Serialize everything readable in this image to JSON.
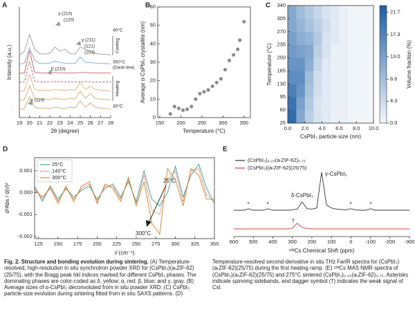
{
  "chart_data": [
    {
      "panel": "A",
      "type": "waterfall",
      "xlabel": "2θ (degree)",
      "ylabel": "Intensity (a.u.)",
      "xlim": [
        19,
        28
      ],
      "xticks": [
        19,
        20,
        21,
        22,
        23,
        24,
        25,
        26,
        27,
        28
      ],
      "x": [
        19,
        19.5,
        20,
        20.5,
        21,
        21.5,
        22,
        22.5,
        23,
        23.5,
        24,
        24.5,
        25,
        25.5,
        26,
        26.5,
        27,
        27.5,
        28
      ],
      "series": [
        {
          "color": "#d4a373",
          "values": [
            1,
            1.2,
            4,
            1.5,
            1.2,
            1.3,
            1.2,
            1.5,
            1.3,
            1.2,
            1.5,
            1.3,
            3,
            1.5,
            2.5,
            1.4,
            1.3,
            1.2,
            1.1
          ]
        },
        {
          "color": "#d9a86c",
          "values": [
            1,
            1.2,
            4.5,
            1.5,
            1.2,
            1.3,
            1.2,
            1.5,
            1.3,
            1.2,
            1.5,
            1.3,
            3.2,
            1.5,
            2.6,
            1.4,
            1.3,
            1.2,
            1.1
          ]
        },
        {
          "color": "#e0b07a",
          "values": [
            1,
            1.2,
            5,
            1.5,
            1.2,
            1.3,
            1.2,
            1.4,
            1.3,
            1.2,
            1.4,
            1.3,
            3.1,
            1.5,
            2.2,
            1.4,
            1.3,
            1.2,
            1.1
          ]
        },
        {
          "color": "#c44e52",
          "linestyle": "dashed",
          "values": [
            1,
            1.1,
            6,
            1.3,
            1.1,
            1.1,
            1.1,
            1.2,
            1.1,
            1.1,
            1.1,
            1.1,
            1.1,
            1.2,
            1.1,
            1.1,
            1.1,
            1.1,
            1.1
          ]
        },
        {
          "color": "#d0605f",
          "values": [
            1,
            1.1,
            6.5,
            1.3,
            1.1,
            1.1,
            1.1,
            1.2,
            1.1,
            1.1,
            1.1,
            1.1,
            1.2,
            1.2,
            1.1,
            1.1,
            1.1,
            1.1,
            1.1
          ]
        },
        {
          "color": "#7fa7cf",
          "values": [
            1,
            1.3,
            5,
            2,
            1.2,
            1.2,
            1.3,
            1.8,
            1.4,
            1.3,
            1.2,
            1.2,
            2.8,
            1.5,
            1.4,
            1.3,
            1.2,
            1.2,
            1.1
          ]
        },
        {
          "color": "#9a9a9a",
          "values": [
            1,
            2,
            6,
            2.5,
            1.4,
            1.3,
            1.5,
            3,
            2,
            2.5,
            1.4,
            1.3,
            3,
            2.5,
            2,
            1.4,
            1.3,
            1.2,
            1.1
          ]
        }
      ],
      "annotations": [
        "γ (210)",
        "(120)",
        "γ (211)",
        "(121)",
        "(103)",
        "β (210)",
        "α (110)"
      ],
      "temperature_labels": [
        "40°C",
        "Cooling",
        "350°C",
        "(Dash line)",
        "Heating",
        "30°C"
      ]
    },
    {
      "panel": "B",
      "type": "scatter",
      "xlabel": "Temperature (°C)",
      "ylabel": "Average α-CsPbI₃ crystallite (nm)",
      "xlim": [
        145,
        365
      ],
      "xticks": [
        150,
        200,
        250,
        300,
        350
      ],
      "ylim": [
        0,
        60
      ],
      "yticks": [
        0,
        10,
        20,
        30,
        40,
        50,
        60
      ],
      "color": "#8c8c8c",
      "x": [
        175,
        185,
        195,
        205,
        215,
        225,
        235,
        245,
        255,
        265,
        275,
        285,
        295,
        305,
        315,
        325,
        335,
        340,
        350
      ],
      "values": [
        2,
        6,
        5,
        4,
        4.5,
        6,
        10,
        13,
        14,
        15,
        17,
        19,
        21,
        26,
        31,
        34,
        37,
        42,
        52
      ]
    },
    {
      "panel": "C",
      "type": "heatmap",
      "xlabel": "CsPbI₃ particle size (nm)",
      "ylabel": "Temperature (°C)",
      "colorbar_label": "Volume fraction (%)",
      "xlim": [
        0,
        10
      ],
      "xticks": [
        {
          "value": 0,
          "label": "0.0"
        },
        {
          "value": 2,
          "label": "2.0"
        },
        {
          "value": 4,
          "label": "4.0"
        },
        {
          "value": 6,
          "label": "6.0"
        },
        {
          "value": 8,
          "label": "8.0"
        },
        {
          "value": 10,
          "label": "10.0"
        }
      ],
      "ylim": [
        25,
        340
      ],
      "yticks": [
        25,
        60,
        95,
        130,
        165,
        200,
        235,
        270,
        305,
        340
      ],
      "zlim": [
        0,
        23
      ],
      "zticks": [
        {
          "value": 0,
          "label": "0.0"
        },
        4.3,
        8.6,
        {
          "value": 13,
          "label": "13.0"
        },
        17.3,
        21.7
      ],
      "color_low": "#f4f7fb",
      "color_high": "#1d5fa5",
      "xbins": [
        0,
        1,
        2,
        3,
        4,
        5,
        6,
        7,
        8,
        9,
        10
      ],
      "ybins": [
        25,
        60,
        95,
        130,
        165,
        200,
        235,
        270,
        305,
        340
      ],
      "z": [
        [
          21,
          12,
          6,
          3,
          2,
          1,
          1,
          0.5,
          0.3,
          0.2
        ],
        [
          20,
          13,
          7,
          3,
          2,
          1,
          1,
          0.5,
          0.3,
          0.2
        ],
        [
          18,
          15,
          8,
          4,
          2,
          1,
          1,
          0.5,
          0.3,
          0.2
        ],
        [
          16,
          16,
          9,
          4,
          2,
          1,
          1,
          0.5,
          0.3,
          0.2
        ],
        [
          15,
          15,
          11,
          5,
          2,
          1,
          1,
          0.5,
          0.3,
          0.2
        ],
        [
          14,
          13,
          12,
          6,
          3,
          1,
          1,
          0.5,
          0.3,
          0.2
        ],
        [
          13,
          11,
          10,
          7,
          3,
          2,
          1,
          0.5,
          0.3,
          0.2
        ],
        [
          12,
          10,
          8,
          6,
          4,
          2,
          1,
          0.5,
          0.3,
          0.2
        ],
        [
          12,
          9,
          7,
          5,
          3,
          2,
          1,
          0.5,
          0.3,
          0.2
        ]
      ]
    },
    {
      "panel": "D",
      "type": "line",
      "xlabel": "ν̄ (cm⁻¹)",
      "ylabel": "d²Abs / d(ν̄)²",
      "xlim": [
        120,
        350
      ],
      "xticks": [
        125,
        150,
        175,
        200,
        225,
        250,
        275,
        300,
        325,
        350
      ],
      "ylim": [
        -0.0021,
        0.0016
      ],
      "yticks": [
        0.001,
        {
          "value": 0,
          "label": "0.000"
        },
        -0.001,
        -0.002
      ],
      "x": [
        120,
        130,
        140,
        150,
        160,
        170,
        180,
        190,
        200,
        210,
        220,
        230,
        240,
        250,
        260,
        270,
        280,
        290,
        300,
        310,
        320,
        330,
        340,
        350
      ],
      "series": [
        {
          "name": "25°C",
          "color": "#4aa8a0",
          "values": [
            0.0003,
            -0.0004,
            0.0003,
            -0.0003,
            0.0002,
            -0.0002,
            0.0001,
            0.0003,
            -0.0003,
            0.0002,
            0.0004,
            -0.0002,
            0.0005,
            -0.0004,
            0.001,
            -0.0003,
            -0.0006,
            0,
            0.0012,
            -0.0002,
            0.0008,
            0.0013,
            0.0002,
            -0.0005
          ]
        },
        {
          "name": "140°C",
          "color": "#c0392b",
          "linestyle": "dotted",
          "values": [
            0.0002,
            -0.0003,
            0.0003,
            -0.0004,
            0.0002,
            -0.0003,
            0.0002,
            0.0004,
            -0.0004,
            0.0003,
            0.0003,
            -0.0003,
            0.0006,
            -0.0005,
            0.0008,
            -0.0008,
            -0.001,
            0.0006,
            0.001,
            -0.0004,
            0.001,
            0.0011,
            -0.0001,
            -0.0004
          ]
        },
        {
          "name": "300°C",
          "color": "#e08a2c",
          "values": [
            0.0001,
            -0.0002,
            0.0002,
            -0.0005,
            0.0003,
            -0.0004,
            0.0003,
            0.0005,
            -0.0005,
            0.0004,
            0.0002,
            -0.0004,
            0.0007,
            -0.0006,
            0.0005,
            -0.0014,
            -0.0019,
            0.0011,
            0.0006,
            -0.0006,
            0.0011,
            0.0008,
            -0.0003,
            -0.0003
          ]
        }
      ],
      "annotations": [
        "25°C",
        "300°C"
      ]
    },
    {
      "panel": "E",
      "type": "nmr",
      "xlabel": "¹³³Cs Chemical Shift (ppm)",
      "xlim": [
        600,
        -300
      ],
      "xticks": [
        600,
        500,
        400,
        300,
        200,
        100,
        0,
        -100,
        -200,
        -300
      ],
      "x": [
        600,
        575,
        550,
        525,
        500,
        475,
        450,
        425,
        400,
        375,
        350,
        325,
        300,
        275,
        250,
        225,
        200,
        175,
        150,
        125,
        100,
        75,
        50,
        25,
        0,
        -25,
        -50,
        -75,
        -100,
        -125,
        -150,
        -175,
        -200,
        -225,
        -250,
        -275,
        -300
      ],
      "series": [
        {
          "name": "(CsPbI₃)₀.₂₅(aₜZIF-62)₀.₇₅",
          "color": "#333333",
          "values": [
            0,
            0,
            0,
            4,
            0,
            0,
            0,
            4,
            0,
            0,
            0,
            0,
            1,
            3,
            22,
            4,
            3,
            6,
            100,
            14,
            6,
            3,
            2,
            1,
            4,
            1,
            0,
            0,
            4,
            0,
            0,
            0,
            0,
            0,
            0,
            0,
            0
          ]
        },
        {
          "name": "(CsPbI₃)(aₜZIF-62)(25/75)",
          "color": "#e0383a",
          "values": [
            0,
            0,
            0,
            0,
            0,
            0,
            0,
            0,
            0,
            0,
            0,
            0,
            2,
            15,
            4,
            1,
            0,
            0,
            0,
            0,
            0,
            0,
            0,
            0,
            0,
            0,
            0,
            0,
            0,
            0,
            0,
            0,
            0,
            0,
            0,
            0,
            0
          ]
        }
      ],
      "annotations": [
        "γ-CsPbI₃",
        "δ-CsPbI₃",
        "*",
        "*",
        "*",
        "*",
        "†"
      ]
    }
  ],
  "caption": {
    "label": "Fig. 2.",
    "title": "Structure and bonding evolution during sintering.",
    "text": "(A) Temperature-resolved, high-resolution in situ synchrotron powder XRD for (CsPbI₃)(aₜZIF-62)(25/75), with the Bragg peak hkl indices marked for different CsPbI₃ phases. The dominating phases are color-coded as δ, yellow; α, red; β, blue; and γ, gray. (B) Average sizes of α-CsPbI₃ deconvoluted from in situ powder XRD. (C) CsPbI₃ particle-size evolution during sintering fitted from in situ SAXS patterns. (D) Temperature-resolved second-derivative in situ THz FarIR spectra for (CsPbI₃)(aₜZIF-62)(25/75) during the first heating ramp. (E) ¹³³Cs MAS NMR spectra of (CsPbI₃)(aₜZIF-62)(25/75) and 275°C sintered (CsPbI₃)₀.₂₅(aₜZIF-62)₀.₇₅. Asterisks indicate spinning sidebands, and dagger symbol (†) indicates the weak signal of CsI."
  }
}
